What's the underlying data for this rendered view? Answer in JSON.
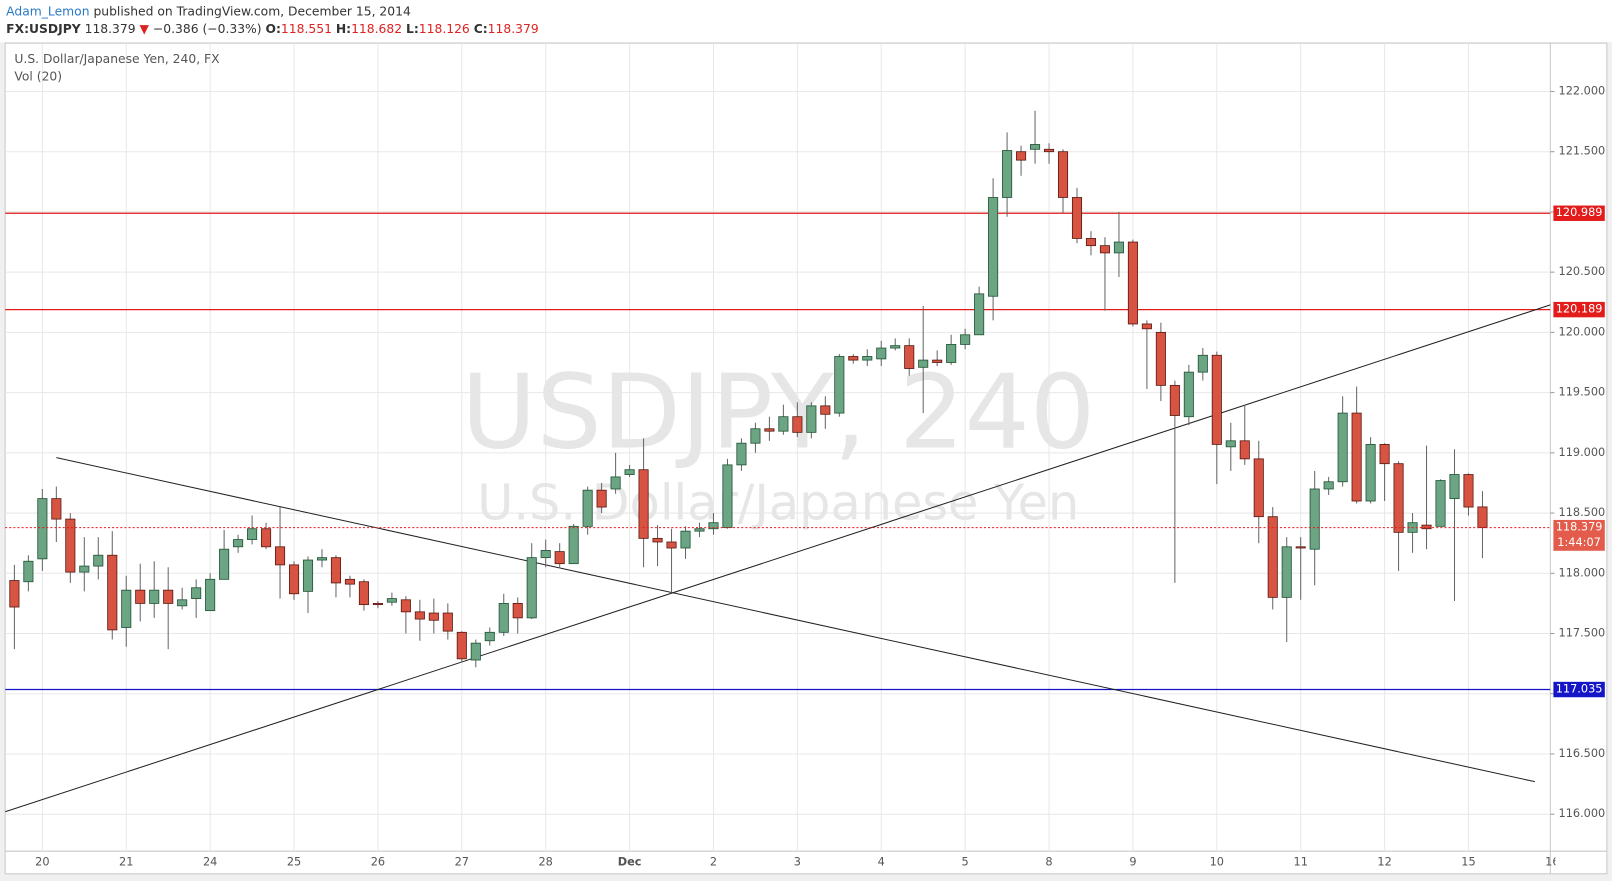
{
  "header": {
    "author": "Adam_Lemon",
    "published": "published on TradingView.com, December 15, 2014"
  },
  "chart_data": {
    "type": "candlestick",
    "symbol": "FX:USDJPY",
    "change": "−0.386 (−0.33%)",
    "direction": "▼",
    "ohlc_keys": [
      "O:",
      "H:",
      "L:",
      "C:"
    ],
    "title": "U.S. Dollar/Japanese Yen, 240, FX",
    "indicator": "Vol (20)",
    "watermark": [
      "USDJPY, 240",
      "U.S. Dollar/Japanese Yen"
    ],
    "countdown": "1:44:07",
    "categories": [
      null,
      null,
      "20",
      null,
      null,
      null,
      null,
      null,
      "21",
      null,
      null,
      null,
      null,
      null,
      "24",
      null,
      null,
      null,
      null,
      null,
      "25",
      null,
      null,
      null,
      null,
      null,
      "26",
      null,
      null,
      null,
      null,
      null,
      "27",
      null,
      null,
      null,
      null,
      null,
      "28",
      null,
      null,
      null,
      null,
      null,
      "Dec",
      null,
      null,
      null,
      null,
      null,
      "2",
      null,
      null,
      null,
      null,
      null,
      "3",
      null,
      null,
      null,
      null,
      null,
      "4",
      null,
      null,
      null,
      null,
      null,
      "5",
      null,
      null,
      null,
      null,
      null,
      "8",
      null,
      null,
      null,
      null,
      null,
      "9",
      null,
      null,
      null,
      null,
      null,
      "10",
      null,
      null,
      null,
      null,
      null,
      "11",
      null,
      null,
      null,
      null,
      null,
      "12",
      null,
      null,
      null,
      null,
      null,
      "15",
      null,
      null,
      null,
      null,
      null,
      "16"
    ],
    "open": [
      117.94,
      117.93,
      118.12,
      118.62,
      118.45,
      118.01,
      118.06,
      118.15,
      117.55,
      117.86,
      117.75,
      117.86,
      117.73,
      117.79,
      117.69,
      117.95,
      118.22,
      118.28,
      118.37,
      118.22,
      118.07,
      117.85,
      118.11,
      118.13,
      117.95,
      117.93,
      117.75,
      117.76,
      117.78,
      117.68,
      117.67,
      117.67,
      117.51,
      117.28,
      117.44,
      117.51,
      117.75,
      117.63,
      118.13,
      118.18,
      118.08,
      118.39,
      118.69,
      118.7,
      118.82,
      118.86,
      118.29,
      118.26,
      118.21,
      118.35,
      118.37,
      118.38,
      118.9,
      119.08,
      119.2,
      119.18,
      119.3,
      119.17,
      119.39,
      119.33,
      119.8,
      119.77,
      119.78,
      119.87,
      119.89,
      119.71,
      119.77,
      119.75,
      119.9,
      119.98,
      120.3,
      121.12,
      121.5,
      121.52,
      121.52,
      121.5,
      121.12,
      120.78,
      120.72,
      120.66,
      120.75,
      120.07,
      120.0,
      119.56,
      119.3,
      119.67,
      119.81,
      119.05,
      119.1,
      118.95,
      118.47,
      117.8,
      118.22,
      118.2,
      118.7,
      118.76,
      119.33,
      118.6,
      119.07,
      118.91,
      118.34,
      118.4,
      118.39,
      118.62,
      118.82,
      118.551,
      null,
      null,
      null,
      null,
      null
    ],
    "high": [
      118.07,
      118.15,
      118.7,
      118.72,
      118.5,
      118.3,
      118.3,
      118.35,
      117.98,
      118.08,
      118.1,
      118.05,
      117.88,
      117.95,
      118.0,
      118.36,
      118.32,
      118.48,
      118.42,
      118.55,
      118.1,
      118.14,
      118.2,
      118.15,
      117.98,
      117.95,
      117.77,
      117.84,
      117.81,
      117.78,
      117.79,
      117.75,
      117.52,
      117.45,
      117.55,
      117.83,
      117.8,
      118.25,
      118.28,
      118.25,
      118.41,
      118.72,
      118.75,
      119.0,
      118.9,
      119.12,
      118.4,
      118.37,
      118.39,
      118.42,
      118.5,
      118.95,
      119.12,
      119.25,
      119.3,
      119.4,
      119.42,
      119.42,
      119.47,
      119.82,
      119.82,
      119.86,
      119.93,
      119.95,
      119.95,
      120.22,
      119.85,
      119.98,
      120.03,
      120.38,
      121.28,
      121.66,
      121.55,
      121.84,
      121.57,
      121.52,
      121.2,
      120.84,
      120.79,
      121.0,
      120.77,
      120.1,
      120.08,
      119.6,
      119.73,
      119.87,
      119.84,
      119.25,
      119.4,
      119.1,
      118.55,
      118.3,
      118.3,
      118.85,
      118.8,
      119.47,
      119.55,
      119.13,
      119.08,
      118.93,
      118.5,
      119.06,
      118.78,
      119.03,
      118.83,
      118.682,
      null,
      null,
      null,
      null,
      null
    ],
    "low": [
      117.37,
      117.85,
      118.02,
      118.26,
      117.92,
      117.85,
      117.95,
      117.45,
      117.39,
      117.6,
      117.63,
      117.37,
      117.7,
      117.63,
      117.69,
      117.95,
      118.17,
      118.24,
      118.2,
      117.79,
      117.78,
      117.67,
      118.05,
      117.8,
      117.8,
      117.69,
      117.71,
      117.73,
      117.5,
      117.44,
      117.5,
      117.45,
      117.26,
      117.22,
      117.4,
      117.48,
      117.5,
      117.62,
      118.05,
      118.04,
      118.08,
      118.32,
      118.5,
      118.66,
      118.8,
      118.05,
      118.06,
      117.84,
      118.12,
      118.3,
      118.32,
      118.37,
      118.85,
      119.0,
      119.1,
      119.15,
      119.13,
      119.12,
      119.2,
      119.3,
      119.74,
      119.72,
      119.72,
      119.85,
      119.64,
      119.33,
      119.72,
      119.73,
      119.86,
      119.98,
      120.1,
      120.96,
      121.3,
      121.4,
      121.4,
      120.99,
      120.74,
      120.64,
      120.18,
      120.46,
      120.05,
      119.53,
      119.43,
      117.92,
      119.23,
      119.6,
      118.74,
      118.85,
      118.9,
      118.25,
      117.7,
      117.43,
      117.78,
      117.9,
      118.65,
      118.72,
      118.58,
      118.58,
      118.6,
      118.02,
      118.17,
      118.2,
      118.39,
      117.77,
      118.48,
      118.126,
      null,
      null,
      null,
      null,
      null
    ],
    "close": [
      117.72,
      118.1,
      118.62,
      118.45,
      118.01,
      118.06,
      118.15,
      117.53,
      117.86,
      117.75,
      117.86,
      117.75,
      117.78,
      117.88,
      117.95,
      118.2,
      118.28,
      118.37,
      118.22,
      118.07,
      117.83,
      118.11,
      118.13,
      117.92,
      117.91,
      117.74,
      117.74,
      117.79,
      117.68,
      117.62,
      117.61,
      117.52,
      117.29,
      117.42,
      117.51,
      117.75,
      117.63,
      118.13,
      118.19,
      118.08,
      118.39,
      118.69,
      118.55,
      118.8,
      118.86,
      118.29,
      118.26,
      118.21,
      118.35,
      118.37,
      118.42,
      118.9,
      119.08,
      119.2,
      119.18,
      119.3,
      119.17,
      119.39,
      119.32,
      119.8,
      119.77,
      119.8,
      119.87,
      119.89,
      119.7,
      119.77,
      119.75,
      119.9,
      119.98,
      120.32,
      121.12,
      121.51,
      121.43,
      121.56,
      121.5,
      121.12,
      120.78,
      120.72,
      120.66,
      120.75,
      120.07,
      120.03,
      119.56,
      119.31,
      119.67,
      119.81,
      119.07,
      119.1,
      118.95,
      118.47,
      117.8,
      118.22,
      118.21,
      118.7,
      118.76,
      119.33,
      118.6,
      119.07,
      118.91,
      118.34,
      118.42,
      118.37,
      118.77,
      118.82,
      118.55,
      118.379,
      null,
      null,
      null,
      null,
      null
    ],
    "up_color": "#6ba583",
    "down_color": "#d75442",
    "ylim": [
      115.693,
      122.401
    ],
    "yticks": [
      {
        "value": 116,
        "label": "116.000"
      },
      {
        "value": 116.5,
        "label": "116.500"
      },
      {
        "value": 117,
        "label": "117.000"
      },
      {
        "value": 117.5,
        "label": "117.500"
      },
      {
        "value": 118,
        "label": "118.000"
      },
      {
        "value": 118.5,
        "label": "118.500"
      },
      {
        "value": 119,
        "label": "119.000"
      },
      {
        "value": 119.5,
        "label": "119.500"
      },
      {
        "value": 120,
        "label": "120.000"
      },
      {
        "value": 120.5,
        "label": "120.500"
      },
      {
        "value": 121,
        "label": "121.000"
      },
      {
        "value": 121.5,
        "label": "121.500"
      },
      {
        "value": 122,
        "label": "122.000"
      }
    ],
    "grid": true,
    "hlines": [
      {
        "value": 120.989,
        "color": "#e31b1b"
      },
      {
        "value": 120.189,
        "color": "#e31b1b"
      },
      {
        "value": 117.035,
        "color": "#1515c8"
      }
    ],
    "trend_lines": [
      {
        "x": [
          -0.66,
          109.9
        ],
        "y": [
          116.02,
          120.23
        ]
      },
      {
        "x": [
          3.0,
          108.75
        ],
        "y": [
          118.96,
          116.27
        ]
      }
    ]
  }
}
